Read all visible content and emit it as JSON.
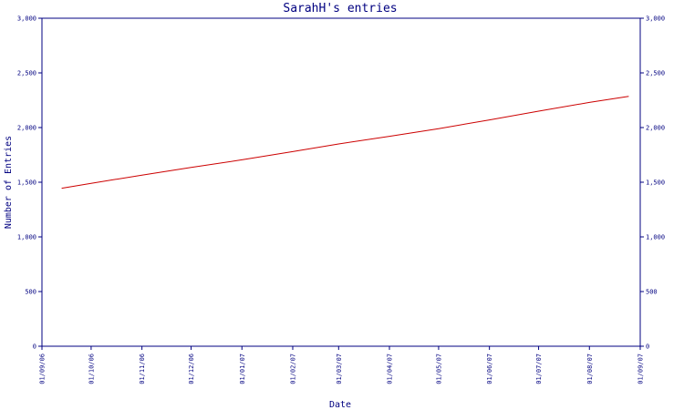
{
  "chart_data": {
    "type": "line",
    "title": "SarahH's entries",
    "xlabel": "Date",
    "ylabel": "Number of Entries",
    "ylim": [
      0,
      3000
    ],
    "y_ticks": [
      0,
      500,
      1000,
      1500,
      2000,
      2500,
      3000
    ],
    "y_tick_labels": [
      "0",
      "500",
      "1,000",
      "1,500",
      "2,000",
      "2,500",
      "3,000"
    ],
    "x_ticks": [
      "2006-09-01",
      "2006-10-01",
      "2006-11-01",
      "2006-12-01",
      "2007-01-01",
      "2007-02-01",
      "2007-03-01",
      "2007-04-01",
      "2007-05-01",
      "2007-06-01",
      "2007-07-01",
      "2007-08-01",
      "2007-09-01"
    ],
    "x_tick_labels": [
      "01/09/06",
      "01/10/06",
      "01/11/06",
      "01/12/06",
      "01/01/07",
      "01/02/07",
      "01/03/07",
      "01/04/07",
      "01/05/07",
      "01/06/07",
      "01/07/07",
      "01/08/07",
      "01/09/07"
    ],
    "xlim": [
      "2006-09-01",
      "2007-09-01"
    ],
    "grid": false,
    "right_axis": true,
    "colors": {
      "axis": "#000080",
      "line": "#cc0000"
    },
    "series": [
      {
        "x": [
          "2006-09-13",
          "2006-10-01",
          "2006-11-01",
          "2006-12-01",
          "2007-01-01",
          "2007-02-01",
          "2007-03-01",
          "2007-04-01",
          "2007-05-01",
          "2007-06-01",
          "2007-07-01",
          "2007-08-01",
          "2007-08-25"
        ],
        "y": [
          1445,
          1490,
          1565,
          1635,
          1705,
          1780,
          1850,
          1920,
          1990,
          2070,
          2150,
          2230,
          2285
        ]
      }
    ]
  }
}
